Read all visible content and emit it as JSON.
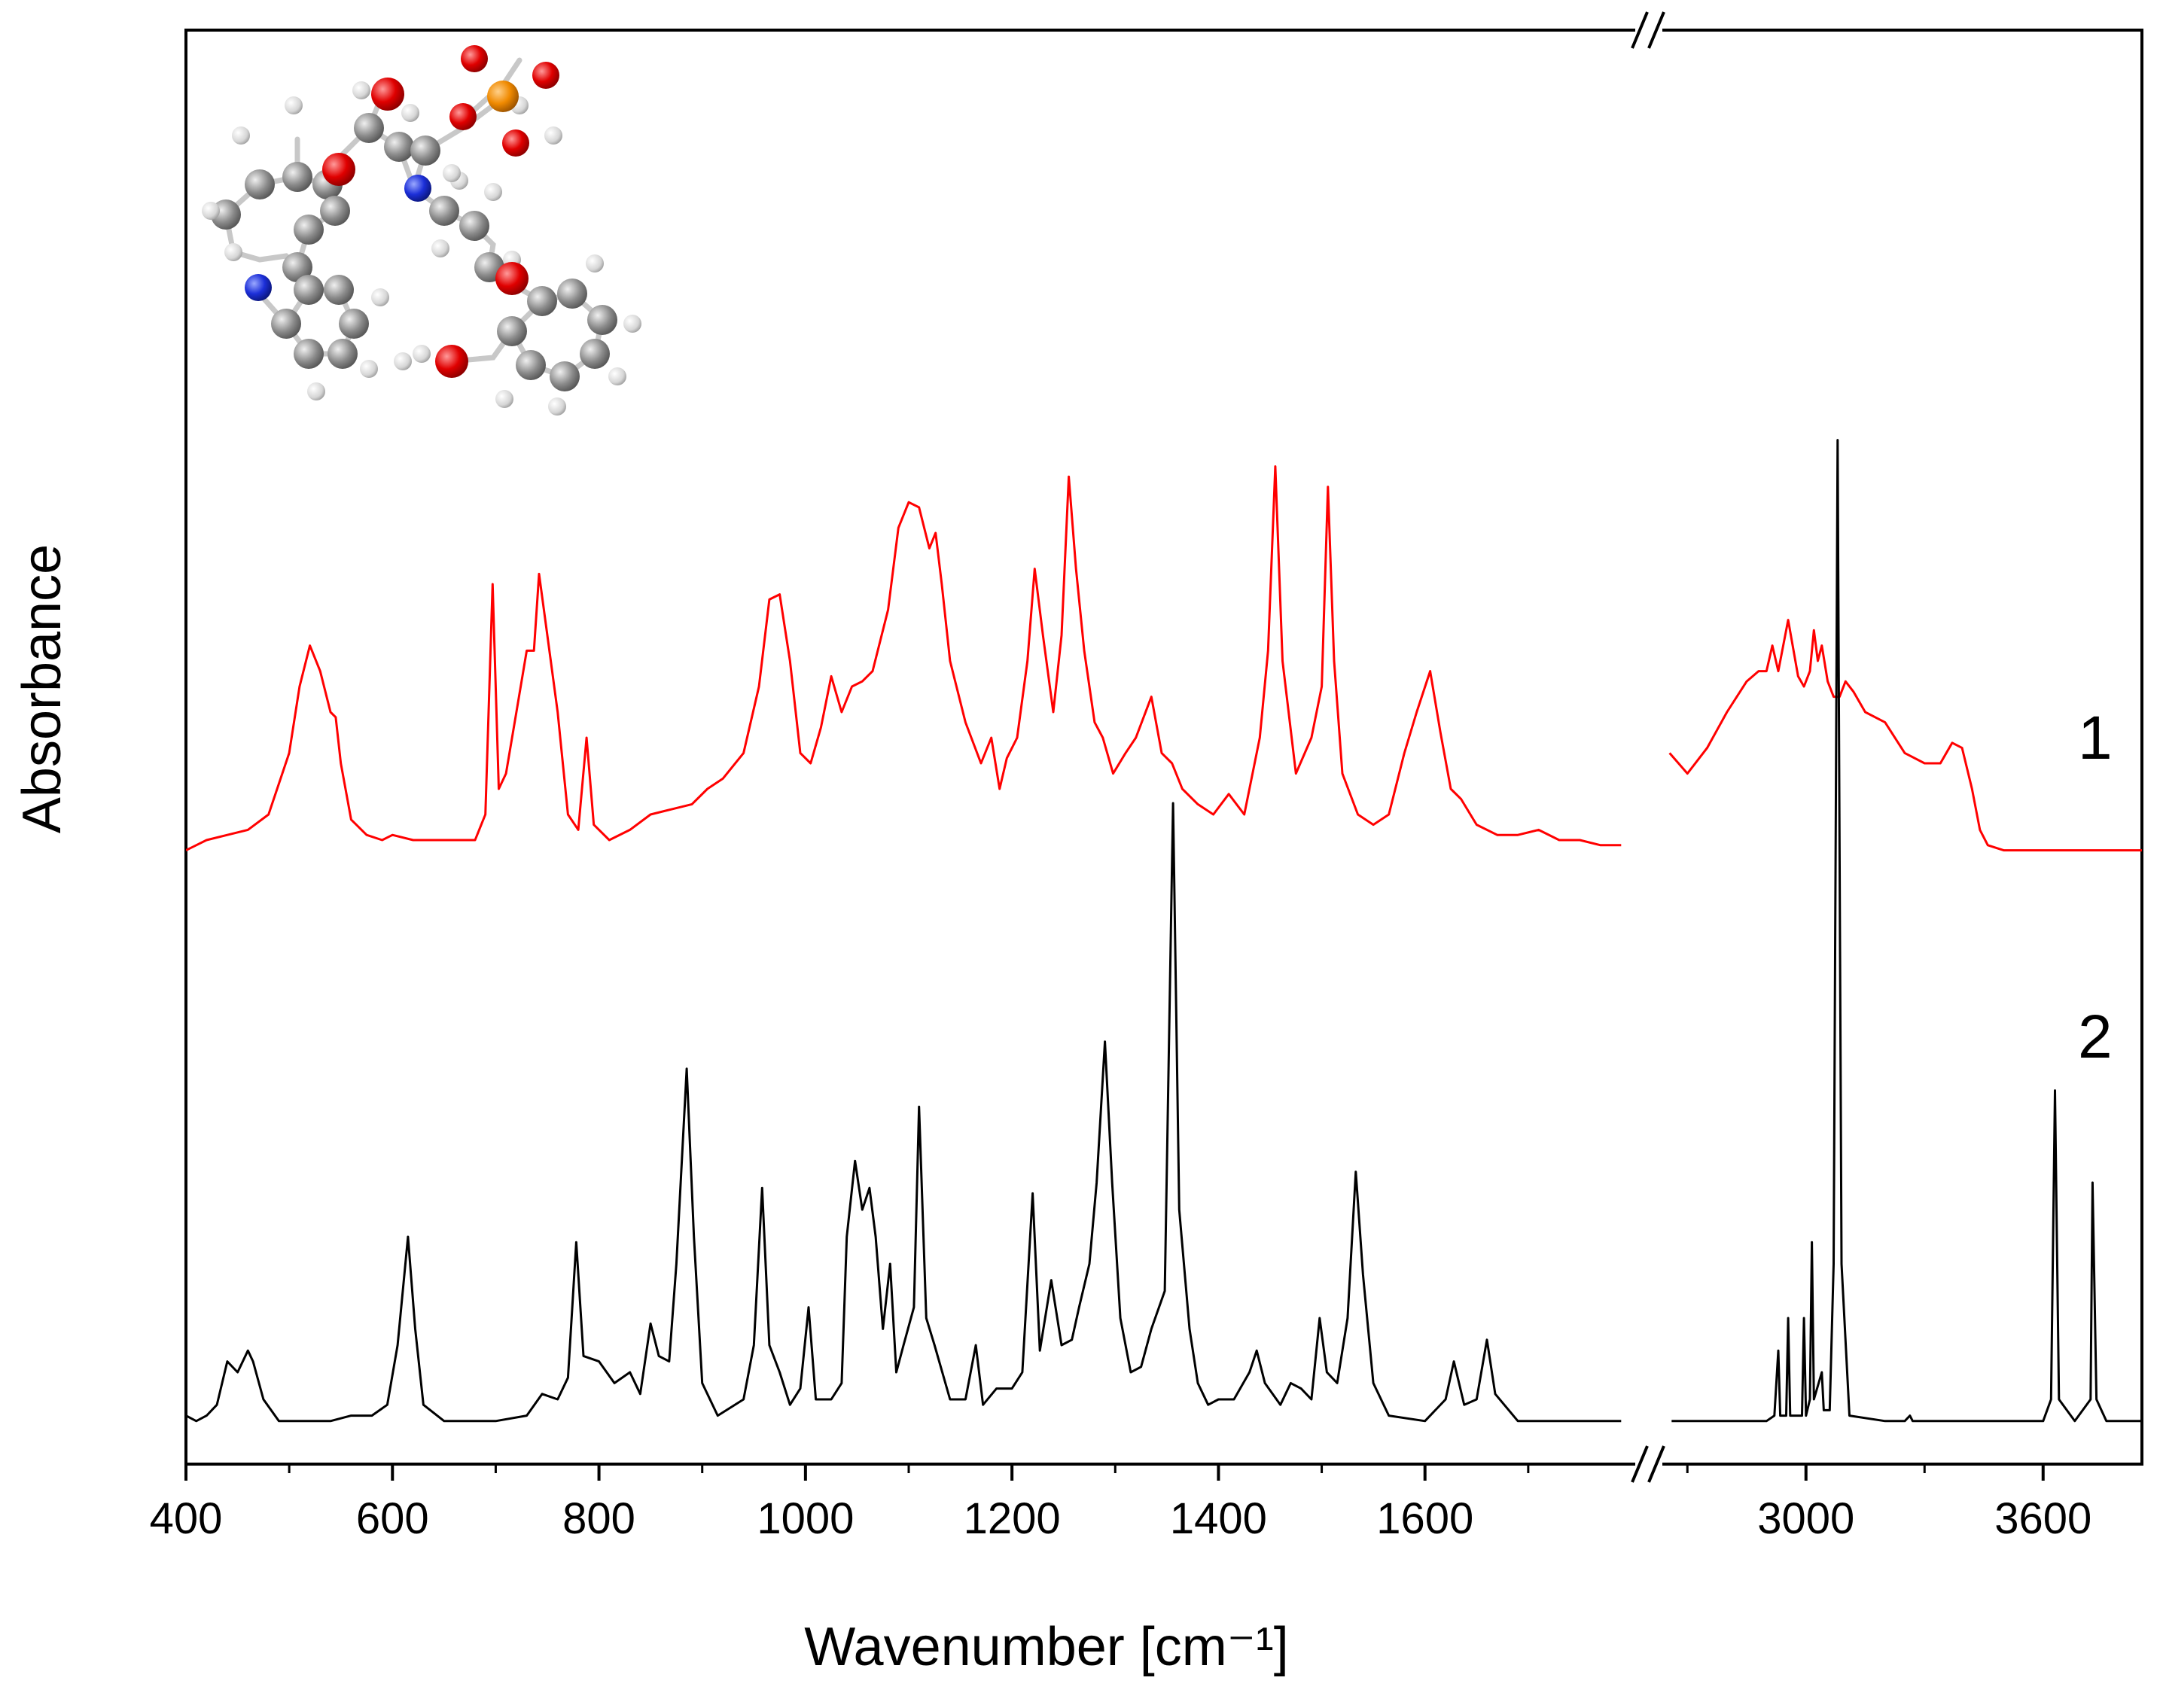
{
  "chart_data": {
    "type": "line",
    "title": "",
    "xlabel": "Wavenumber [cm⁻¹]",
    "ylabel": "Absorbance",
    "y_ticks_shown": false,
    "grid": false,
    "x_axis_break": {
      "left_segment": [
        400,
        1800
      ],
      "right_segment": [
        2650,
        3850
      ]
    },
    "x_ticks": [
      400,
      600,
      800,
      1000,
      1200,
      1400,
      1600,
      3000,
      3600
    ],
    "x_tick_labels": [
      "400",
      "600",
      "800",
      "1000",
      "1200",
      "1400",
      "1600",
      "3000",
      "3600"
    ],
    "inset": "molecular structure (ball-and-stick model, top-left)",
    "series": [
      {
        "name": "1",
        "color": "#ff0000",
        "description": "experimental IR absorbance spectrum",
        "points": [
          [
            400,
            0.03
          ],
          [
            420,
            0.05
          ],
          [
            440,
            0.06
          ],
          [
            460,
            0.07
          ],
          [
            480,
            0.1
          ],
          [
            500,
            0.22
          ],
          [
            510,
            0.35
          ],
          [
            520,
            0.43
          ],
          [
            530,
            0.38
          ],
          [
            540,
            0.3
          ],
          [
            545,
            0.29
          ],
          [
            550,
            0.2
          ],
          [
            560,
            0.09
          ],
          [
            575,
            0.06
          ],
          [
            590,
            0.05
          ],
          [
            600,
            0.06
          ],
          [
            620,
            0.05
          ],
          [
            650,
            0.05
          ],
          [
            680,
            0.05
          ],
          [
            690,
            0.1
          ],
          [
            697,
            0.55
          ],
          [
            703,
            0.15
          ],
          [
            710,
            0.18
          ],
          [
            720,
            0.3
          ],
          [
            730,
            0.42
          ],
          [
            737,
            0.42
          ],
          [
            742,
            0.57
          ],
          [
            750,
            0.45
          ],
          [
            760,
            0.3
          ],
          [
            770,
            0.1
          ],
          [
            780,
            0.07
          ],
          [
            788,
            0.25
          ],
          [
            795,
            0.08
          ],
          [
            810,
            0.05
          ],
          [
            830,
            0.07
          ],
          [
            850,
            0.1
          ],
          [
            870,
            0.11
          ],
          [
            890,
            0.12
          ],
          [
            905,
            0.15
          ],
          [
            920,
            0.17
          ],
          [
            940,
            0.22
          ],
          [
            955,
            0.35
          ],
          [
            965,
            0.52
          ],
          [
            975,
            0.53
          ],
          [
            985,
            0.4
          ],
          [
            995,
            0.22
          ],
          [
            1005,
            0.2
          ],
          [
            1015,
            0.27
          ],
          [
            1025,
            0.37
          ],
          [
            1035,
            0.3
          ],
          [
            1045,
            0.35
          ],
          [
            1055,
            0.36
          ],
          [
            1065,
            0.38
          ],
          [
            1080,
            0.5
          ],
          [
            1090,
            0.66
          ],
          [
            1100,
            0.71
          ],
          [
            1110,
            0.7
          ],
          [
            1120,
            0.62
          ],
          [
            1126,
            0.65
          ],
          [
            1132,
            0.55
          ],
          [
            1140,
            0.4
          ],
          [
            1155,
            0.28
          ],
          [
            1170,
            0.2
          ],
          [
            1180,
            0.25
          ],
          [
            1188,
            0.15
          ],
          [
            1195,
            0.21
          ],
          [
            1205,
            0.25
          ],
          [
            1215,
            0.4
          ],
          [
            1222,
            0.58
          ],
          [
            1230,
            0.45
          ],
          [
            1240,
            0.3
          ],
          [
            1248,
            0.45
          ],
          [
            1255,
            0.76
          ],
          [
            1262,
            0.58
          ],
          [
            1270,
            0.42
          ],
          [
            1280,
            0.28
          ],
          [
            1288,
            0.25
          ],
          [
            1298,
            0.18
          ],
          [
            1310,
            0.22
          ],
          [
            1320,
            0.25
          ],
          [
            1335,
            0.33
          ],
          [
            1345,
            0.22
          ],
          [
            1355,
            0.2
          ],
          [
            1365,
            0.15
          ],
          [
            1380,
            0.12
          ],
          [
            1395,
            0.1
          ],
          [
            1410,
            0.14
          ],
          [
            1425,
            0.1
          ],
          [
            1440,
            0.25
          ],
          [
            1448,
            0.42
          ],
          [
            1455,
            0.78
          ],
          [
            1462,
            0.4
          ],
          [
            1475,
            0.18
          ],
          [
            1490,
            0.25
          ],
          [
            1500,
            0.35
          ],
          [
            1506,
            0.74
          ],
          [
            1512,
            0.4
          ],
          [
            1520,
            0.18
          ],
          [
            1535,
            0.1
          ],
          [
            1550,
            0.08
          ],
          [
            1565,
            0.1
          ],
          [
            1580,
            0.22
          ],
          [
            1592,
            0.3
          ],
          [
            1605,
            0.38
          ],
          [
            1615,
            0.26
          ],
          [
            1625,
            0.15
          ],
          [
            1635,
            0.13
          ],
          [
            1650,
            0.08
          ],
          [
            1670,
            0.06
          ],
          [
            1690,
            0.06
          ],
          [
            1710,
            0.07
          ],
          [
            1730,
            0.05
          ],
          [
            1750,
            0.05
          ],
          [
            1770,
            0.04
          ],
          [
            1790,
            0.04
          ],
          [
            2655,
            0.22
          ],
          [
            2700,
            0.18
          ],
          [
            2750,
            0.23
          ],
          [
            2800,
            0.3
          ],
          [
            2850,
            0.36
          ],
          [
            2880,
            0.38
          ],
          [
            2900,
            0.38
          ],
          [
            2915,
            0.43
          ],
          [
            2930,
            0.38
          ],
          [
            2955,
            0.48
          ],
          [
            2980,
            0.37
          ],
          [
            2995,
            0.35
          ],
          [
            3010,
            0.38
          ],
          [
            3020,
            0.46
          ],
          [
            3030,
            0.4
          ],
          [
            3040,
            0.43
          ],
          [
            3055,
            0.36
          ],
          [
            3070,
            0.33
          ],
          [
            3085,
            0.33
          ],
          [
            3100,
            0.36
          ],
          [
            3120,
            0.34
          ],
          [
            3150,
            0.3
          ],
          [
            3200,
            0.28
          ],
          [
            3250,
            0.22
          ],
          [
            3300,
            0.2
          ],
          [
            3340,
            0.2
          ],
          [
            3370,
            0.24
          ],
          [
            3395,
            0.23
          ],
          [
            3420,
            0.15
          ],
          [
            3440,
            0.07
          ],
          [
            3460,
            0.04
          ],
          [
            3500,
            0.03
          ],
          [
            3600,
            0.03
          ],
          [
            3700,
            0.03
          ],
          [
            3800,
            0.03
          ],
          [
            3850,
            0.03
          ]
        ]
      },
      {
        "name": "2",
        "color": "#000000",
        "description": "calculated IR spectrum",
        "points": [
          [
            400,
            0.02
          ],
          [
            410,
            0.01
          ],
          [
            420,
            0.02
          ],
          [
            430,
            0.04
          ],
          [
            440,
            0.12
          ],
          [
            450,
            0.1
          ],
          [
            460,
            0.14
          ],
          [
            465,
            0.12
          ],
          [
            475,
            0.05
          ],
          [
            490,
            0.01
          ],
          [
            520,
            0.01
          ],
          [
            540,
            0.01
          ],
          [
            560,
            0.02
          ],
          [
            580,
            0.02
          ],
          [
            595,
            0.04
          ],
          [
            605,
            0.15
          ],
          [
            615,
            0.35
          ],
          [
            622,
            0.18
          ],
          [
            630,
            0.04
          ],
          [
            650,
            0.01
          ],
          [
            700,
            0.01
          ],
          [
            730,
            0.02
          ],
          [
            745,
            0.06
          ],
          [
            760,
            0.05
          ],
          [
            770,
            0.09
          ],
          [
            778,
            0.34
          ],
          [
            785,
            0.13
          ],
          [
            800,
            0.12
          ],
          [
            815,
            0.08
          ],
          [
            830,
            0.1
          ],
          [
            840,
            0.06
          ],
          [
            850,
            0.19
          ],
          [
            858,
            0.13
          ],
          [
            868,
            0.12
          ],
          [
            875,
            0.3
          ],
          [
            885,
            0.66
          ],
          [
            892,
            0.35
          ],
          [
            900,
            0.08
          ],
          [
            915,
            0.02
          ],
          [
            940,
            0.05
          ],
          [
            950,
            0.15
          ],
          [
            958,
            0.44
          ],
          [
            965,
            0.15
          ],
          [
            975,
            0.1
          ],
          [
            985,
            0.04
          ],
          [
            995,
            0.07
          ],
          [
            1003,
            0.22
          ],
          [
            1010,
            0.05
          ],
          [
            1025,
            0.05
          ],
          [
            1035,
            0.08
          ],
          [
            1040,
            0.35
          ],
          [
            1048,
            0.49
          ],
          [
            1055,
            0.4
          ],
          [
            1062,
            0.44
          ],
          [
            1068,
            0.35
          ],
          [
            1075,
            0.18
          ],
          [
            1082,
            0.3
          ],
          [
            1088,
            0.1
          ],
          [
            1095,
            0.15
          ],
          [
            1105,
            0.22
          ],
          [
            1110,
            0.59
          ],
          [
            1117,
            0.2
          ],
          [
            1125,
            0.15
          ],
          [
            1140,
            0.05
          ],
          [
            1155,
            0.05
          ],
          [
            1165,
            0.15
          ],
          [
            1172,
            0.04
          ],
          [
            1185,
            0.07
          ],
          [
            1200,
            0.07
          ],
          [
            1210,
            0.1
          ],
          [
            1220,
            0.43
          ],
          [
            1227,
            0.14
          ],
          [
            1238,
            0.27
          ],
          [
            1248,
            0.15
          ],
          [
            1258,
            0.16
          ],
          [
            1265,
            0.22
          ],
          [
            1275,
            0.3
          ],
          [
            1282,
            0.45
          ],
          [
            1290,
            0.71
          ],
          [
            1297,
            0.45
          ],
          [
            1305,
            0.2
          ],
          [
            1315,
            0.1
          ],
          [
            1325,
            0.11
          ],
          [
            1335,
            0.18
          ],
          [
            1348,
            0.25
          ],
          [
            1356,
            1.15
          ],
          [
            1362,
            0.4
          ],
          [
            1372,
            0.18
          ],
          [
            1380,
            0.08
          ],
          [
            1390,
            0.04
          ],
          [
            1400,
            0.05
          ],
          [
            1415,
            0.05
          ],
          [
            1430,
            0.1
          ],
          [
            1437,
            0.14
          ],
          [
            1445,
            0.08
          ],
          [
            1460,
            0.04
          ],
          [
            1470,
            0.08
          ],
          [
            1480,
            0.07
          ],
          [
            1490,
            0.05
          ],
          [
            1498,
            0.2
          ],
          [
            1505,
            0.1
          ],
          [
            1515,
            0.08
          ],
          [
            1525,
            0.2
          ],
          [
            1533,
            0.47
          ],
          [
            1540,
            0.28
          ],
          [
            1550,
            0.08
          ],
          [
            1565,
            0.02
          ],
          [
            1600,
            0.01
          ],
          [
            1620,
            0.05
          ],
          [
            1628,
            0.12
          ],
          [
            1638,
            0.04
          ],
          [
            1650,
            0.05
          ],
          [
            1660,
            0.16
          ],
          [
            1668,
            0.06
          ],
          [
            1690,
            0.01
          ],
          [
            1730,
            0.01
          ],
          [
            1790,
            0.01
          ],
          [
            2660,
            0.01
          ],
          [
            2900,
            0.01
          ],
          [
            2920,
            0.02
          ],
          [
            2930,
            0.14
          ],
          [
            2935,
            0.02
          ],
          [
            2950,
            0.02
          ],
          [
            2955,
            0.2
          ],
          [
            2960,
            0.02
          ],
          [
            2990,
            0.02
          ],
          [
            2995,
            0.2
          ],
          [
            3000,
            0.02
          ],
          [
            3010,
            0.05
          ],
          [
            3015,
            0.34
          ],
          [
            3020,
            0.05
          ],
          [
            3040,
            0.1
          ],
          [
            3045,
            0.03
          ],
          [
            3060,
            0.03
          ],
          [
            3070,
            0.3
          ],
          [
            3080,
            1.82
          ],
          [
            3090,
            0.3
          ],
          [
            3110,
            0.02
          ],
          [
            3200,
            0.01
          ],
          [
            3250,
            0.01
          ],
          [
            3263,
            0.02
          ],
          [
            3270,
            0.01
          ],
          [
            3600,
            0.01
          ],
          [
            3620,
            0.05
          ],
          [
            3630,
            0.62
          ],
          [
            3640,
            0.05
          ],
          [
            3680,
            0.01
          ],
          [
            3720,
            0.05
          ],
          [
            3725,
            0.45
          ],
          [
            3735,
            0.05
          ],
          [
            3760,
            0.01
          ],
          [
            3850,
            0.01
          ]
        ]
      }
    ]
  }
}
